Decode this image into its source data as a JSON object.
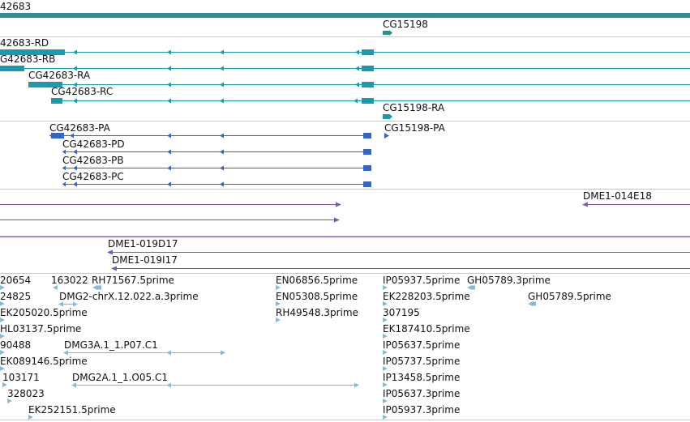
{
  "colors": {
    "gene": "#2f8f8f",
    "rna_teal": "#1a9ab0",
    "rna_blue": "#3565c0",
    "clone_purple": "#7a5aa8",
    "est_light": "#88b8d8",
    "divider": "#c8c8c8"
  },
  "gene_track": {
    "gene_label": "42683",
    "neighbor_label": "CG15198"
  },
  "mrna_track": {
    "rd": "42683-RD",
    "rb": "G42683-RB",
    "ra": "CG42683-RA",
    "rc": "CG42683-RC",
    "cg15198_ra": "CG15198-RA"
  },
  "protein_track": {
    "pa": "CG42683-PA",
    "cg15198_pa": "CG15198-PA",
    "pd": "CG42683-PD",
    "pb": "CG42683-PB",
    "pc": "CG42683-PC"
  },
  "clone_track": {
    "dme014e18": "DME1-014E18"
  },
  "clone_track2": {
    "dme019d17": "DME1-019D17",
    "dme019i17": "DME1-019I17"
  },
  "est_track": {
    "e1": "20654",
    "e2": "163022",
    "e3": "RH71567.5prime",
    "e4": "EN06856.5prime",
    "e5": "IP05937.5prime",
    "e6": "GH05789.3prime",
    "e7": "24825",
    "e8": "DMG2-chrX.12.022.a.3prime",
    "e9": "EN05308.5prime",
    "e10": "EK228203.5prime",
    "e11": "GH05789.5prime",
    "e12": "EK205020.5prime",
    "e13": "RH49548.3prime",
    "e14": "307195",
    "e15": "HL03137.5prime",
    "e16": "EK187410.5prime",
    "e17": "90488",
    "e18": "DMG3A.1_1.P07.C1",
    "e19": "IP05637.5prime",
    "e20": "EK089146.5prime",
    "e21": "IP05737.5prime",
    "e22": "103171",
    "e23": "DMG2A.1_1.O05.C1",
    "e24": "IP13458.5prime",
    "e25": "328023",
    "e26": "IP05637.3prime",
    "e27": "EK252151.5prime",
    "e28": "IP05937.3prime"
  }
}
